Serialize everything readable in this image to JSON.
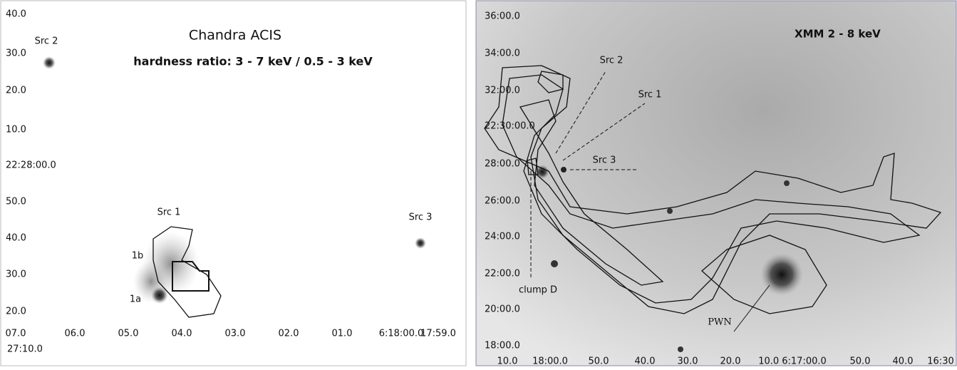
{
  "left": {
    "title": "Chandra ACIS",
    "subtitle": "hardness ratio: 3 - 7 keV / 0.5 - 3 keV",
    "y_labels": [
      "40.0",
      "30.0",
      "20.0",
      "10.0",
      "22:28:00.0",
      "50.0",
      "40.0",
      "30.0",
      "20.0"
    ],
    "x_labels": [
      "07.0",
      "06.0",
      "05.0",
      "04.0",
      "03.0",
      "02.0",
      "01.0",
      "6:18:00.0",
      "17:59.0"
    ],
    "x_extra": "27:10.0",
    "sources": [
      "Src 2",
      "Src 1",
      "Src 3",
      "1b",
      "1a"
    ]
  },
  "right": {
    "title": "XMM  2 - 8 keV",
    "y_labels": [
      "36:00.0",
      "34:00.0",
      "32:00.0",
      "22:30:00.0",
      "28:00.0",
      "26:00.0",
      "24:00.0",
      "22:00.0",
      "20:00.0",
      "18:00.0"
    ],
    "x_labels": [
      "10.0",
      "18:00.0",
      "50.0",
      "40.0",
      "30.0",
      "20.0",
      "10.0 6:17:00.0",
      "50.0",
      "40.0",
      "16:30"
    ],
    "sources": [
      "Src 2",
      "Src 1",
      "Src 3",
      "clump D",
      "PWN"
    ]
  }
}
